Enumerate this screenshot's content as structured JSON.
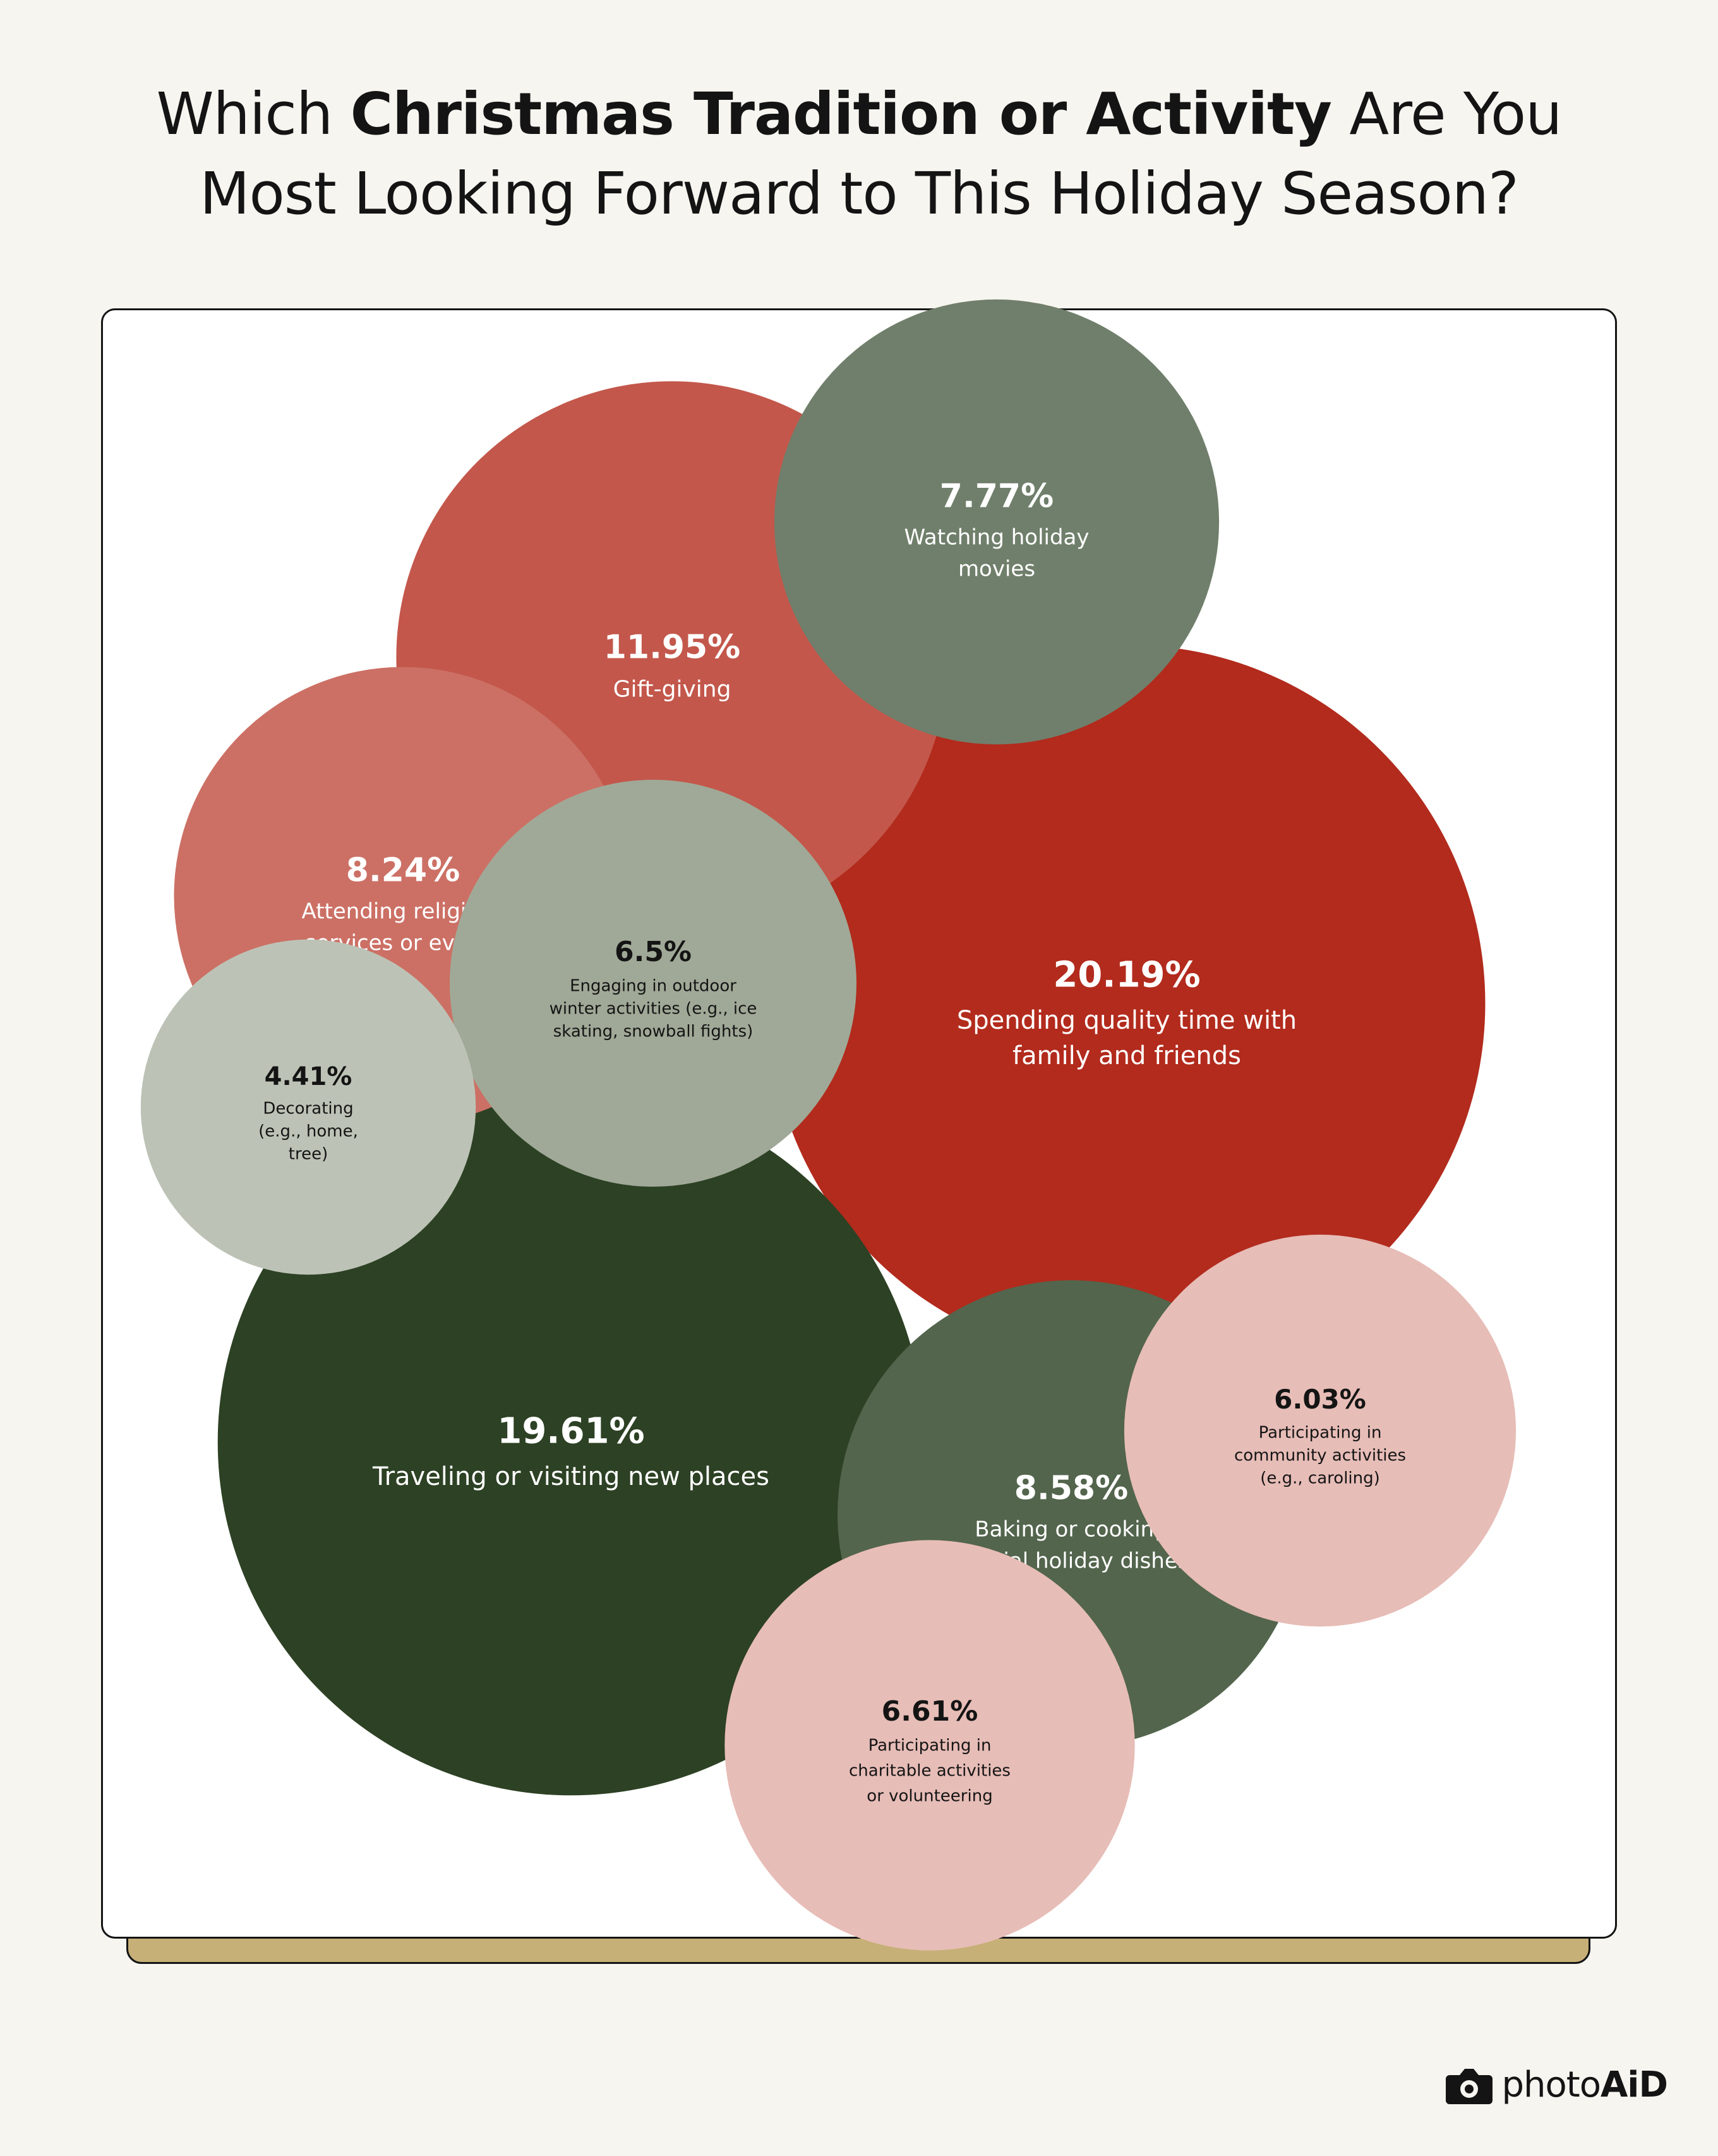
{
  "title": {
    "part1": "Which ",
    "bold": "Christmas Tradition or Activity",
    "part2": " Are You",
    "line2": "Most Looking Forward to This Holiday Season?"
  },
  "chart_data": {
    "type": "bubble",
    "title": "Which Christmas Tradition or Activity Are You Most Looking Forward to This Holiday Season?",
    "unit": "%",
    "items": [
      {
        "label": "Spending quality time with family and friends",
        "value_label": "20.19%",
        "value": 20.19,
        "lines": [
          "Spending quality time with",
          "family and friends"
        ],
        "color": "#b22b1d",
        "text_color": "#ffffff"
      },
      {
        "label": "Traveling or visiting new places",
        "value_label": "19.61%",
        "value": 19.61,
        "lines": [
          "Traveling or visiting new places"
        ],
        "color": "#2d4124",
        "text_color": "#ffffff"
      },
      {
        "label": "Gift-giving",
        "value_label": "11.95%",
        "value": 11.95,
        "lines": [
          "Gift-giving"
        ],
        "color": "#c3574b",
        "text_color": "#ffffff"
      },
      {
        "label": "Baking or cooking special holiday dishes",
        "value_label": "8.58%",
        "value": 8.58,
        "lines": [
          "Baking or cooking",
          "special holiday dishes"
        ],
        "color": "#53654d",
        "text_color": "#ffffff"
      },
      {
        "label": "Attending religious services or events",
        "value_label": "8.24%",
        "value": 8.24,
        "lines": [
          "Attending religious",
          "services or events"
        ],
        "color": "#cc7065",
        "text_color": "#ffffff"
      },
      {
        "label": "Watching holiday movies",
        "value_label": "7.77%",
        "value": 7.77,
        "lines": [
          "Watching holiday",
          "movies"
        ],
        "color": "#707f6b",
        "text_color": "#ffffff"
      },
      {
        "label": "Participating in charitable activities or volunteering",
        "value_label": "6.61%",
        "value": 6.61,
        "lines": [
          "Participating in",
          "charitable activities",
          "or volunteering"
        ],
        "color": "#e7bdb7",
        "text_color": "#141414"
      },
      {
        "label": "Engaging in outdoor winter activities (e.g., ice skating, snowball fights)",
        "value_label": "6.5%",
        "value": 6.5,
        "lines": [
          "Engaging in outdoor",
          "winter activities (e.g., ice",
          "skating, snowball fights)"
        ],
        "color": "#a0a997",
        "text_color": "#141414"
      },
      {
        "label": "Participating in community activities (e.g., caroling)",
        "value_label": "6.03%",
        "value": 6.03,
        "lines": [
          "Participating in",
          "community activities",
          "(e.g., caroling)"
        ],
        "color": "#e7bdb7",
        "text_color": "#141414"
      },
      {
        "label": "Decorating (e.g., home, tree)",
        "value_label": "4.41%",
        "value": 4.41,
        "lines": [
          "Decorating",
          "(e.g., home,",
          "tree)"
        ],
        "color": "#bcc3b6",
        "text_color": "#141414"
      }
    ]
  },
  "brand": {
    "name_regular": "photo",
    "name_bold": "AiD"
  },
  "colors": {
    "background": "#f7f5f0",
    "card": "#ffffff",
    "card_shadow": "#c6b077",
    "text": "#141414"
  }
}
